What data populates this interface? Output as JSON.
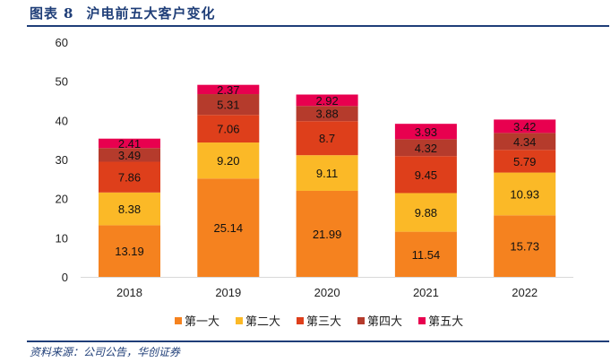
{
  "header": {
    "figure_label": "图表",
    "figure_number": "8",
    "title": "沪电前五大客户变化"
  },
  "footer": {
    "source": "资料来源：公司公告，华创证券"
  },
  "chart_data": {
    "type": "bar",
    "stacked": true,
    "title": "沪电前五大客户变化",
    "xlabel": "",
    "ylabel": "",
    "ylim": [
      0,
      60
    ],
    "yticks": [
      0,
      10,
      20,
      30,
      40,
      50,
      60
    ],
    "grid": false,
    "legend_position": "bottom",
    "categories": [
      "2018",
      "2019",
      "2020",
      "2021",
      "2022"
    ],
    "series": [
      {
        "name": "第一大",
        "color": "#F5821F",
        "values": [
          13.19,
          25.14,
          21.99,
          11.54,
          15.73
        ],
        "labels": [
          "13.19",
          "25.14",
          "21.99",
          "11.54",
          "15.73"
        ]
      },
      {
        "name": "第二大",
        "color": "#FBB927",
        "values": [
          8.38,
          9.2,
          9.11,
          9.88,
          10.93
        ],
        "labels": [
          "8.38",
          "9.20",
          "9.11",
          "9.88",
          "10.93"
        ]
      },
      {
        "name": "第三大",
        "color": "#DE3F1B",
        "values": [
          7.86,
          7.06,
          8.7,
          9.45,
          5.79
        ],
        "labels": [
          "7.86",
          "7.06",
          "8.7",
          "9.45",
          "5.79"
        ]
      },
      {
        "name": "第四大",
        "color": "#B53B2C",
        "values": [
          3.49,
          5.31,
          3.88,
          4.32,
          4.34
        ],
        "labels": [
          "3.49",
          "5.31",
          "3.88",
          "4.32",
          "4.34"
        ]
      },
      {
        "name": "第五大",
        "color": "#E8004F",
        "values": [
          2.41,
          2.37,
          2.92,
          3.93,
          3.42
        ],
        "labels": [
          "2.41",
          "2.37",
          "2.92",
          "3.93",
          "3.42"
        ]
      }
    ]
  }
}
